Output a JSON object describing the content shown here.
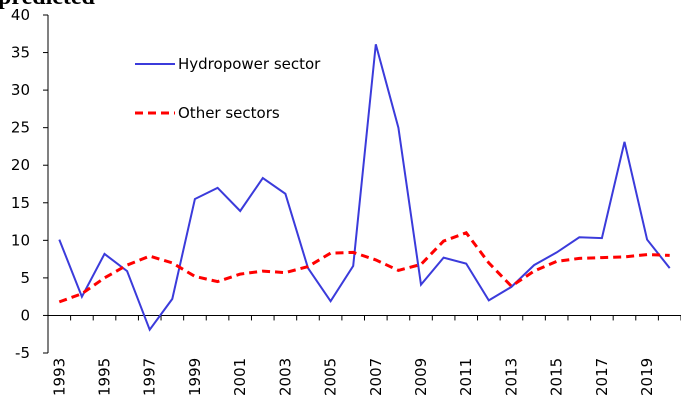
{
  "chart_data": {
    "type": "line",
    "caption": "predicted",
    "categories": [
      "1993",
      null,
      "1995",
      null,
      "1997",
      null,
      "1999",
      null,
      "2001",
      null,
      "2003",
      null,
      "2005",
      null,
      "2007",
      null,
      "2009",
      null,
      "2011",
      null,
      "2013",
      null,
      "2015",
      null,
      "2017",
      null,
      "2019",
      null
    ],
    "series": [
      {
        "name": "Hydropower sector",
        "color": "#3b3bdb",
        "linestyle": "solid",
        "values": [
          10.1,
          2.5,
          8.2,
          5.9,
          -1.9,
          2.2,
          15.5,
          17.0,
          13.9,
          18.3,
          16.2,
          6.3,
          1.9,
          6.6,
          36.1,
          25.0,
          4.1,
          7.7,
          6.9,
          2.0,
          3.8,
          6.7,
          8.4,
          10.4,
          10.3,
          23.1,
          10.1,
          6.3
        ]
      },
      {
        "name": "Other sectors",
        "color": "#ff0000",
        "linestyle": "dashed",
        "values": [
          1.8,
          2.9,
          5.0,
          6.7,
          7.9,
          7.0,
          5.2,
          4.5,
          5.5,
          5.9,
          5.7,
          6.5,
          8.3,
          8.4,
          7.4,
          6.0,
          6.8,
          9.9,
          11.0,
          7.0,
          3.9,
          5.9,
          7.2,
          7.6,
          7.7,
          7.8,
          8.1,
          8.0
        ]
      }
    ],
    "ylim": [
      -5,
      40
    ],
    "yticks": [
      -5,
      0,
      5,
      10,
      15,
      20,
      25,
      30,
      35,
      40
    ],
    "grid": false
  }
}
